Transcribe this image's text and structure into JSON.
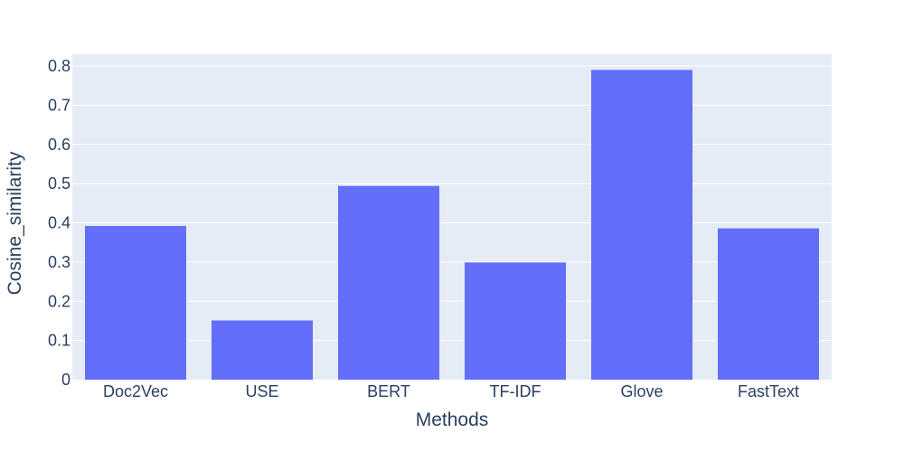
{
  "chart_data": {
    "type": "bar",
    "title": "",
    "xlabel": "Methods",
    "ylabel": "Cosine_similarity",
    "categories": [
      "Doc2Vec",
      "USE",
      "BERT",
      "TF-IDF",
      "Glove",
      "FastText"
    ],
    "values": [
      0.392,
      0.151,
      0.494,
      0.299,
      0.79,
      0.386
    ],
    "ylim": [
      0,
      0.8
    ],
    "yticks": [
      "0",
      "0.1",
      "0.2",
      "0.3",
      "0.4",
      "0.5",
      "0.6",
      "0.7",
      "0.8"
    ],
    "grid": true,
    "legend": "none",
    "colors": {
      "bar": "#636efa",
      "plot_background": "#e5ecf6",
      "grid": "#ffffff",
      "text": "#2a3f5f"
    }
  }
}
